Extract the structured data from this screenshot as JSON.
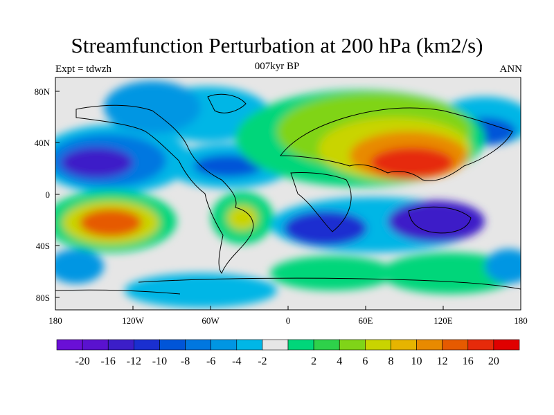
{
  "title": "Streamfunction Perturbation at 200 hPa (km2/s)",
  "left_label": "Expt = tdwzh",
  "center_label": "007kyr BP",
  "right_label": "ANN",
  "lat_labels": [
    "80N",
    "40N",
    "0",
    "40S",
    "80S"
  ],
  "lon_labels": [
    "180",
    "120W",
    "60W",
    "0",
    "60E",
    "120E",
    "180"
  ],
  "colorbar": {
    "colors": [
      "#6a0fd6",
      "#5a12cf",
      "#3c1ec8",
      "#1a2fd0",
      "#0055d8",
      "#0077e0",
      "#0096e3",
      "#00b6e6",
      "#e6e6e6",
      "#00d67a",
      "#2ed14a",
      "#80d418",
      "#c9d400",
      "#e6b400",
      "#e88a00",
      "#e65a00",
      "#e62a0a",
      "#e00000"
    ],
    "labels": [
      "-20",
      "-16",
      "-12",
      "-10",
      "-8",
      "-6",
      "-4",
      "-2",
      "2",
      "4",
      "6",
      "8",
      "10",
      "12",
      "16",
      "20"
    ]
  }
}
